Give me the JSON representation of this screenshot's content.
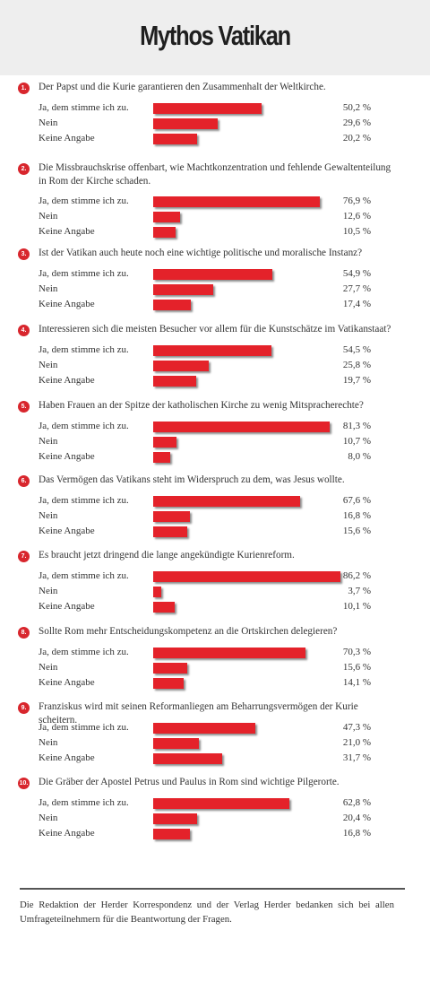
{
  "header": {
    "title": "Mythos Vatikan"
  },
  "answer_labels": [
    "Ja, dem stimme ich zu.",
    "Nein",
    "Keine Angabe"
  ],
  "chart_data": {
    "type": "bar",
    "orientation": "horizontal",
    "categories": [
      "Ja, dem stimme ich zu.",
      "Nein",
      "Keine Angabe"
    ],
    "xlim": [
      0,
      100
    ],
    "grid": false,
    "colors": {
      "bar": "#e4222a",
      "badge": "#d8262d"
    },
    "questions": [
      {
        "number": "1.",
        "text": "Der Papst und die Kurie garantieren den Zusammenhalt der Weltkirche.",
        "values": [
          50.2,
          29.6,
          20.2
        ],
        "labels": [
          "50,2 %",
          "29,6 %",
          "20,2 %"
        ]
      },
      {
        "number": "2.",
        "text": "Die Missbrauchskrise offenbart, wie Machtkonzentration und fehlende Gewaltenteilung in Rom der Kirche schaden.",
        "values": [
          76.9,
          12.6,
          10.5
        ],
        "labels": [
          "76,9 %",
          "12,6 %",
          "10,5 %"
        ]
      },
      {
        "number": "3.",
        "text": "Ist der Vatikan auch heute noch eine wichtige politische und moralische Instanz?",
        "values": [
          54.9,
          27.7,
          17.4
        ],
        "labels": [
          "54,9 %",
          "27,7 %",
          "17,4 %"
        ]
      },
      {
        "number": "4.",
        "text": "Interessieren sich die meisten Besucher vor allem für die Kunstschätze im Vatikanstaat?",
        "values": [
          54.5,
          25.8,
          19.7
        ],
        "labels": [
          "54,5 %",
          "25,8 %",
          "19,7 %"
        ]
      },
      {
        "number": "5.",
        "text": "Haben Frauen an der Spitze der katholischen Kirche zu wenig Mitspracherechte?",
        "values": [
          81.3,
          10.7,
          8.0
        ],
        "labels": [
          "81,3 %",
          "10,7 %",
          "8,0 %"
        ]
      },
      {
        "number": "6.",
        "text": "Das Vermögen das Vatikans steht im Widerspruch zu dem, was Jesus wollte.",
        "values": [
          67.6,
          16.8,
          15.6
        ],
        "labels": [
          "67,6 %",
          "16,8 %",
          "15,6 %"
        ]
      },
      {
        "number": "7.",
        "text": "Es braucht jetzt dringend die lange angekündigte Kurienreform.",
        "values": [
          86.2,
          3.7,
          10.1
        ],
        "labels": [
          "86,2 %",
          "3,7 %",
          "10,1 %"
        ]
      },
      {
        "number": "8.",
        "text": "Sollte Rom mehr Entscheidungskompetenz an die Ortskirchen delegieren?",
        "values": [
          70.3,
          15.6,
          14.1
        ],
        "labels": [
          "70,3 %",
          "15,6 %",
          "14,1 %"
        ]
      },
      {
        "number": "9.",
        "text": "Franziskus wird mit seinen Reformanliegen am Beharrungsvermögen der Kurie scheitern.",
        "values": [
          47.3,
          21.0,
          31.7
        ],
        "labels": [
          "47,3 %",
          "21,0 %",
          "31,7 %"
        ]
      },
      {
        "number": "10.",
        "text": "Die Gräber der Apostel Petrus und Paulus in Rom sind wichtige Pilgerorte.",
        "values": [
          62.8,
          20.4,
          16.8
        ],
        "labels": [
          "62,8 %",
          "20,4 %",
          "16,8 %"
        ]
      }
    ]
  },
  "footer": {
    "text": "Die Redaktion der Herder Korrespondenz und der Verlag Herder bedanken sich bei allen Umfrageteilnehmern für die Beantwortung der Fragen."
  }
}
